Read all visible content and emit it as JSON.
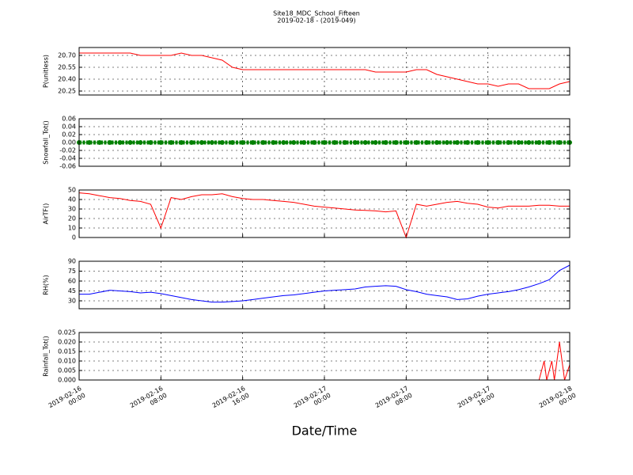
{
  "chart_data": [
    {
      "type": "line",
      "title": "Site18_MDC_School_Fifteen",
      "subtitle": "2019-02-18 - (2019-049)",
      "ylabel": "P(unitless)",
      "x": [
        "2019-02-16 00:00",
        "2019-02-16 01:00",
        "2019-02-16 02:00",
        "2019-02-16 03:00",
        "2019-02-16 04:00",
        "2019-02-16 05:00",
        "2019-02-16 06:00",
        "2019-02-16 07:00",
        "2019-02-16 08:00",
        "2019-02-16 09:00",
        "2019-02-16 10:00",
        "2019-02-16 11:00",
        "2019-02-16 12:00",
        "2019-02-16 13:00",
        "2019-02-16 14:00",
        "2019-02-16 15:00",
        "2019-02-16 16:00",
        "2019-02-16 17:00",
        "2019-02-16 18:00",
        "2019-02-16 19:00",
        "2019-02-16 20:00",
        "2019-02-16 21:00",
        "2019-02-16 22:00",
        "2019-02-16 23:00",
        "2019-02-17 00:00",
        "2019-02-17 01:00",
        "2019-02-17 02:00",
        "2019-02-17 03:00",
        "2019-02-17 04:00",
        "2019-02-17 05:00",
        "2019-02-17 06:00",
        "2019-02-17 07:00",
        "2019-02-17 08:00",
        "2019-02-17 09:00",
        "2019-02-17 10:00",
        "2019-02-17 11:00",
        "2019-02-17 12:00",
        "2019-02-17 13:00",
        "2019-02-17 14:00",
        "2019-02-17 15:00",
        "2019-02-17 16:00",
        "2019-02-17 17:00",
        "2019-02-17 18:00",
        "2019-02-17 19:00",
        "2019-02-17 20:00",
        "2019-02-17 21:00",
        "2019-02-17 22:00",
        "2019-02-17 23:00",
        "2019-02-18 00:00"
      ],
      "series": [
        {
          "color": "#ff0000",
          "values": [
            20.73,
            20.73,
            20.73,
            20.73,
            20.73,
            20.73,
            20.7,
            20.7,
            20.7,
            20.7,
            20.73,
            20.7,
            20.7,
            20.67,
            20.64,
            20.55,
            20.52,
            20.52,
            20.52,
            20.52,
            20.52,
            20.52,
            20.52,
            20.52,
            20.52,
            20.52,
            20.52,
            20.52,
            20.52,
            20.49,
            20.49,
            20.49,
            20.49,
            20.52,
            20.52,
            20.46,
            20.43,
            20.4,
            20.37,
            20.34,
            20.34,
            20.31,
            20.34,
            20.34,
            20.28,
            20.28,
            20.28,
            20.34,
            20.37
          ]
        }
      ],
      "ylim": [
        20.2,
        20.8
      ],
      "yticks": [
        {
          "value": 20.25,
          "label": "20.25"
        },
        {
          "value": 20.4,
          "label": "20.40"
        },
        20.55,
        {
          "value": 20.7,
          "label": "20.70"
        }
      ],
      "xlim": [
        "2019-02-16 00:00",
        "2019-02-18 00:00"
      ],
      "xticks": [
        "2019-02-16 00:00",
        "2019-02-16 08:00",
        "2019-02-16 16:00",
        "2019-02-17 00:00",
        "2019-02-17 08:00",
        "2019-02-17 16:00",
        "2019-02-18 00:00"
      ],
      "grid": true
    },
    {
      "type": "line",
      "ylabel": "Snowfall_Tot()",
      "markers": true,
      "x": [
        "2019-02-16 00:00",
        "2019-02-16 01:00",
        "2019-02-16 02:00",
        "2019-02-16 03:00",
        "2019-02-16 04:00",
        "2019-02-16 05:00",
        "2019-02-16 06:00",
        "2019-02-16 07:00",
        "2019-02-16 08:00",
        "2019-02-16 09:00",
        "2019-02-16 10:00",
        "2019-02-16 11:00",
        "2019-02-16 12:00",
        "2019-02-16 13:00",
        "2019-02-16 14:00",
        "2019-02-16 15:00",
        "2019-02-16 16:00",
        "2019-02-16 17:00",
        "2019-02-16 18:00",
        "2019-02-16 19:00",
        "2019-02-16 20:00",
        "2019-02-16 21:00",
        "2019-02-16 22:00",
        "2019-02-16 23:00",
        "2019-02-17 00:00",
        "2019-02-17 01:00",
        "2019-02-17 02:00",
        "2019-02-17 03:00",
        "2019-02-17 04:00",
        "2019-02-17 05:00",
        "2019-02-17 06:00",
        "2019-02-17 07:00",
        "2019-02-17 08:00",
        "2019-02-17 09:00",
        "2019-02-17 10:00",
        "2019-02-17 11:00",
        "2019-02-17 12:00",
        "2019-02-17 13:00",
        "2019-02-17 14:00",
        "2019-02-17 15:00",
        "2019-02-17 16:00",
        "2019-02-17 17:00",
        "2019-02-17 18:00",
        "2019-02-17 19:00",
        "2019-02-17 20:00",
        "2019-02-17 21:00",
        "2019-02-17 22:00",
        "2019-02-17 23:00",
        "2019-02-18 00:00"
      ],
      "series": [
        {
          "color": "#008000",
          "values": [
            0,
            0,
            0,
            0,
            0,
            0,
            0,
            0,
            0,
            0,
            0,
            0,
            0,
            0,
            0,
            0,
            0,
            0,
            0,
            0,
            0,
            0,
            0,
            0,
            0,
            0,
            0,
            0,
            0,
            0,
            0,
            0,
            0,
            0,
            0,
            0,
            0,
            0,
            0,
            0,
            0,
            0,
            0,
            0,
            0,
            0,
            0,
            0,
            0
          ]
        }
      ],
      "ylim": [
        -0.06,
        0.06
      ],
      "yticks": [
        -0.06,
        -0.04,
        -0.02,
        {
          "value": 0,
          "label": "0.00"
        },
        0.02,
        0.04,
        0.06
      ],
      "xlim": [
        "2019-02-16 00:00",
        "2019-02-18 00:00"
      ],
      "xticks": [
        "2019-02-16 00:00",
        "2019-02-16 08:00",
        "2019-02-16 16:00",
        "2019-02-17 00:00",
        "2019-02-17 08:00",
        "2019-02-17 16:00",
        "2019-02-18 00:00"
      ],
      "grid": true
    },
    {
      "type": "line",
      "ylabel": "AirTF()",
      "x": [
        "2019-02-16 00:00",
        "2019-02-16 01:00",
        "2019-02-16 02:00",
        "2019-02-16 03:00",
        "2019-02-16 04:00",
        "2019-02-16 05:00",
        "2019-02-16 06:00",
        "2019-02-16 07:00",
        "2019-02-16 08:00",
        "2019-02-16 09:00",
        "2019-02-16 10:00",
        "2019-02-16 11:00",
        "2019-02-16 12:00",
        "2019-02-16 13:00",
        "2019-02-16 14:00",
        "2019-02-16 15:00",
        "2019-02-16 16:00",
        "2019-02-16 17:00",
        "2019-02-16 18:00",
        "2019-02-16 19:00",
        "2019-02-16 20:00",
        "2019-02-16 21:00",
        "2019-02-16 22:00",
        "2019-02-16 23:00",
        "2019-02-17 00:00",
        "2019-02-17 01:00",
        "2019-02-17 02:00",
        "2019-02-17 03:00",
        "2019-02-17 04:00",
        "2019-02-17 05:00",
        "2019-02-17 06:00",
        "2019-02-17 07:00",
        "2019-02-17 08:00",
        "2019-02-17 09:00",
        "2019-02-17 10:00",
        "2019-02-17 11:00",
        "2019-02-17 12:00",
        "2019-02-17 13:00",
        "2019-02-17 14:00",
        "2019-02-17 15:00",
        "2019-02-17 16:00",
        "2019-02-17 17:00",
        "2019-02-17 18:00",
        "2019-02-17 19:00",
        "2019-02-17 20:00",
        "2019-02-17 21:00",
        "2019-02-17 22:00",
        "2019-02-17 23:00",
        "2019-02-18 00:00"
      ],
      "series": [
        {
          "color": "#ff0000",
          "values": [
            47,
            46,
            44,
            42,
            41,
            39,
            38,
            35,
            10,
            42,
            40,
            43,
            45,
            45,
            46,
            43,
            41,
            40,
            40,
            39,
            38,
            37,
            35,
            33,
            32,
            31,
            30,
            29,
            28.5,
            28,
            27,
            28,
            0,
            35,
            33,
            35,
            37,
            38,
            36,
            35,
            32,
            31,
            33,
            33,
            33,
            34,
            34,
            33,
            33
          ]
        }
      ],
      "ylim": [
        0,
        50
      ],
      "yticks": [
        0,
        10,
        20,
        30,
        40,
        50
      ],
      "xlim": [
        "2019-02-16 00:00",
        "2019-02-18 00:00"
      ],
      "xticks": [
        "2019-02-16 00:00",
        "2019-02-16 08:00",
        "2019-02-16 16:00",
        "2019-02-17 00:00",
        "2019-02-17 08:00",
        "2019-02-17 16:00",
        "2019-02-18 00:00"
      ],
      "grid": true
    },
    {
      "type": "line",
      "ylabel": "RH(%)",
      "x": [
        "2019-02-16 00:00",
        "2019-02-16 01:00",
        "2019-02-16 02:00",
        "2019-02-16 03:00",
        "2019-02-16 04:00",
        "2019-02-16 05:00",
        "2019-02-16 06:00",
        "2019-02-16 07:00",
        "2019-02-16 08:00",
        "2019-02-16 09:00",
        "2019-02-16 10:00",
        "2019-02-16 11:00",
        "2019-02-16 12:00",
        "2019-02-16 13:00",
        "2019-02-16 14:00",
        "2019-02-16 15:00",
        "2019-02-16 16:00",
        "2019-02-16 17:00",
        "2019-02-16 18:00",
        "2019-02-16 19:00",
        "2019-02-16 20:00",
        "2019-02-16 21:00",
        "2019-02-16 22:00",
        "2019-02-16 23:00",
        "2019-02-17 00:00",
        "2019-02-17 01:00",
        "2019-02-17 02:00",
        "2019-02-17 03:00",
        "2019-02-17 04:00",
        "2019-02-17 05:00",
        "2019-02-17 06:00",
        "2019-02-17 07:00",
        "2019-02-17 08:00",
        "2019-02-17 09:00",
        "2019-02-17 10:00",
        "2019-02-17 11:00",
        "2019-02-17 12:00",
        "2019-02-17 13:00",
        "2019-02-17 14:00",
        "2019-02-17 15:00",
        "2019-02-17 16:00",
        "2019-02-17 17:00",
        "2019-02-17 18:00",
        "2019-02-17 19:00",
        "2019-02-17 20:00",
        "2019-02-17 21:00",
        "2019-02-17 22:00",
        "2019-02-17 23:00",
        "2019-02-18 00:00"
      ],
      "series": [
        {
          "color": "#0000ff",
          "values": [
            40,
            40,
            43,
            46,
            45,
            44,
            42,
            43,
            41,
            38,
            35,
            32,
            30,
            28,
            28,
            29,
            30,
            32,
            34,
            36,
            38,
            39,
            41,
            43,
            45,
            46,
            47,
            48,
            51,
            52,
            53,
            52,
            47,
            44,
            40,
            38,
            36,
            32,
            33,
            37,
            40,
            42,
            44,
            47,
            51,
            56,
            62,
            76,
            84
          ]
        }
      ],
      "ylim": [
        18,
        90
      ],
      "yticks": [
        30,
        45,
        60,
        75,
        90
      ],
      "xlim": [
        "2019-02-16 00:00",
        "2019-02-18 00:00"
      ],
      "xticks": [
        "2019-02-16 00:00",
        "2019-02-16 08:00",
        "2019-02-16 16:00",
        "2019-02-17 00:00",
        "2019-02-17 08:00",
        "2019-02-17 16:00",
        "2019-02-18 00:00"
      ],
      "grid": true
    },
    {
      "type": "line",
      "ylabel": "Rainfall_Tot()",
      "xlabel": "Date/Time",
      "x": [
        "2019-02-16 00:00",
        "2019-02-16 04:00",
        "2019-02-16 08:00",
        "2019-02-16 12:00",
        "2019-02-16 16:00",
        "2019-02-16 20:00",
        "2019-02-17 00:00",
        "2019-02-17 04:00",
        "2019-02-17 08:00",
        "2019-02-17 12:00",
        "2019-02-17 16:00",
        "2019-02-17 20:00",
        "2019-02-17 21:00",
        "2019-02-17 21:30",
        "2019-02-17 21:45",
        "2019-02-17 22:15",
        "2019-02-17 22:30",
        "2019-02-17 23:00",
        "2019-02-17 23:30",
        "2019-02-18 00:00"
      ],
      "series": [
        {
          "color": "#ff0000",
          "values": [
            0,
            0,
            0,
            0,
            0,
            0,
            0,
            0,
            0,
            0,
            0,
            0,
            0,
            0.01,
            0,
            0.01,
            0,
            0.02,
            0,
            0.008
          ]
        }
      ],
      "ylim": [
        0,
        0.025
      ],
      "yticks": [
        {
          "value": 0,
          "label": "0.000"
        },
        0.005,
        {
          "value": 0.01,
          "label": "0.010"
        },
        0.015,
        {
          "value": 0.02,
          "label": "0.020"
        },
        0.025
      ],
      "xlim": [
        "2019-02-16 00:00",
        "2019-02-18 00:00"
      ],
      "xticks": [
        "2019-02-16 00:00",
        "2019-02-16 08:00",
        "2019-02-16 16:00",
        "2019-02-17 00:00",
        "2019-02-17 08:00",
        "2019-02-17 16:00",
        "2019-02-18 00:00"
      ],
      "grid": true
    }
  ]
}
